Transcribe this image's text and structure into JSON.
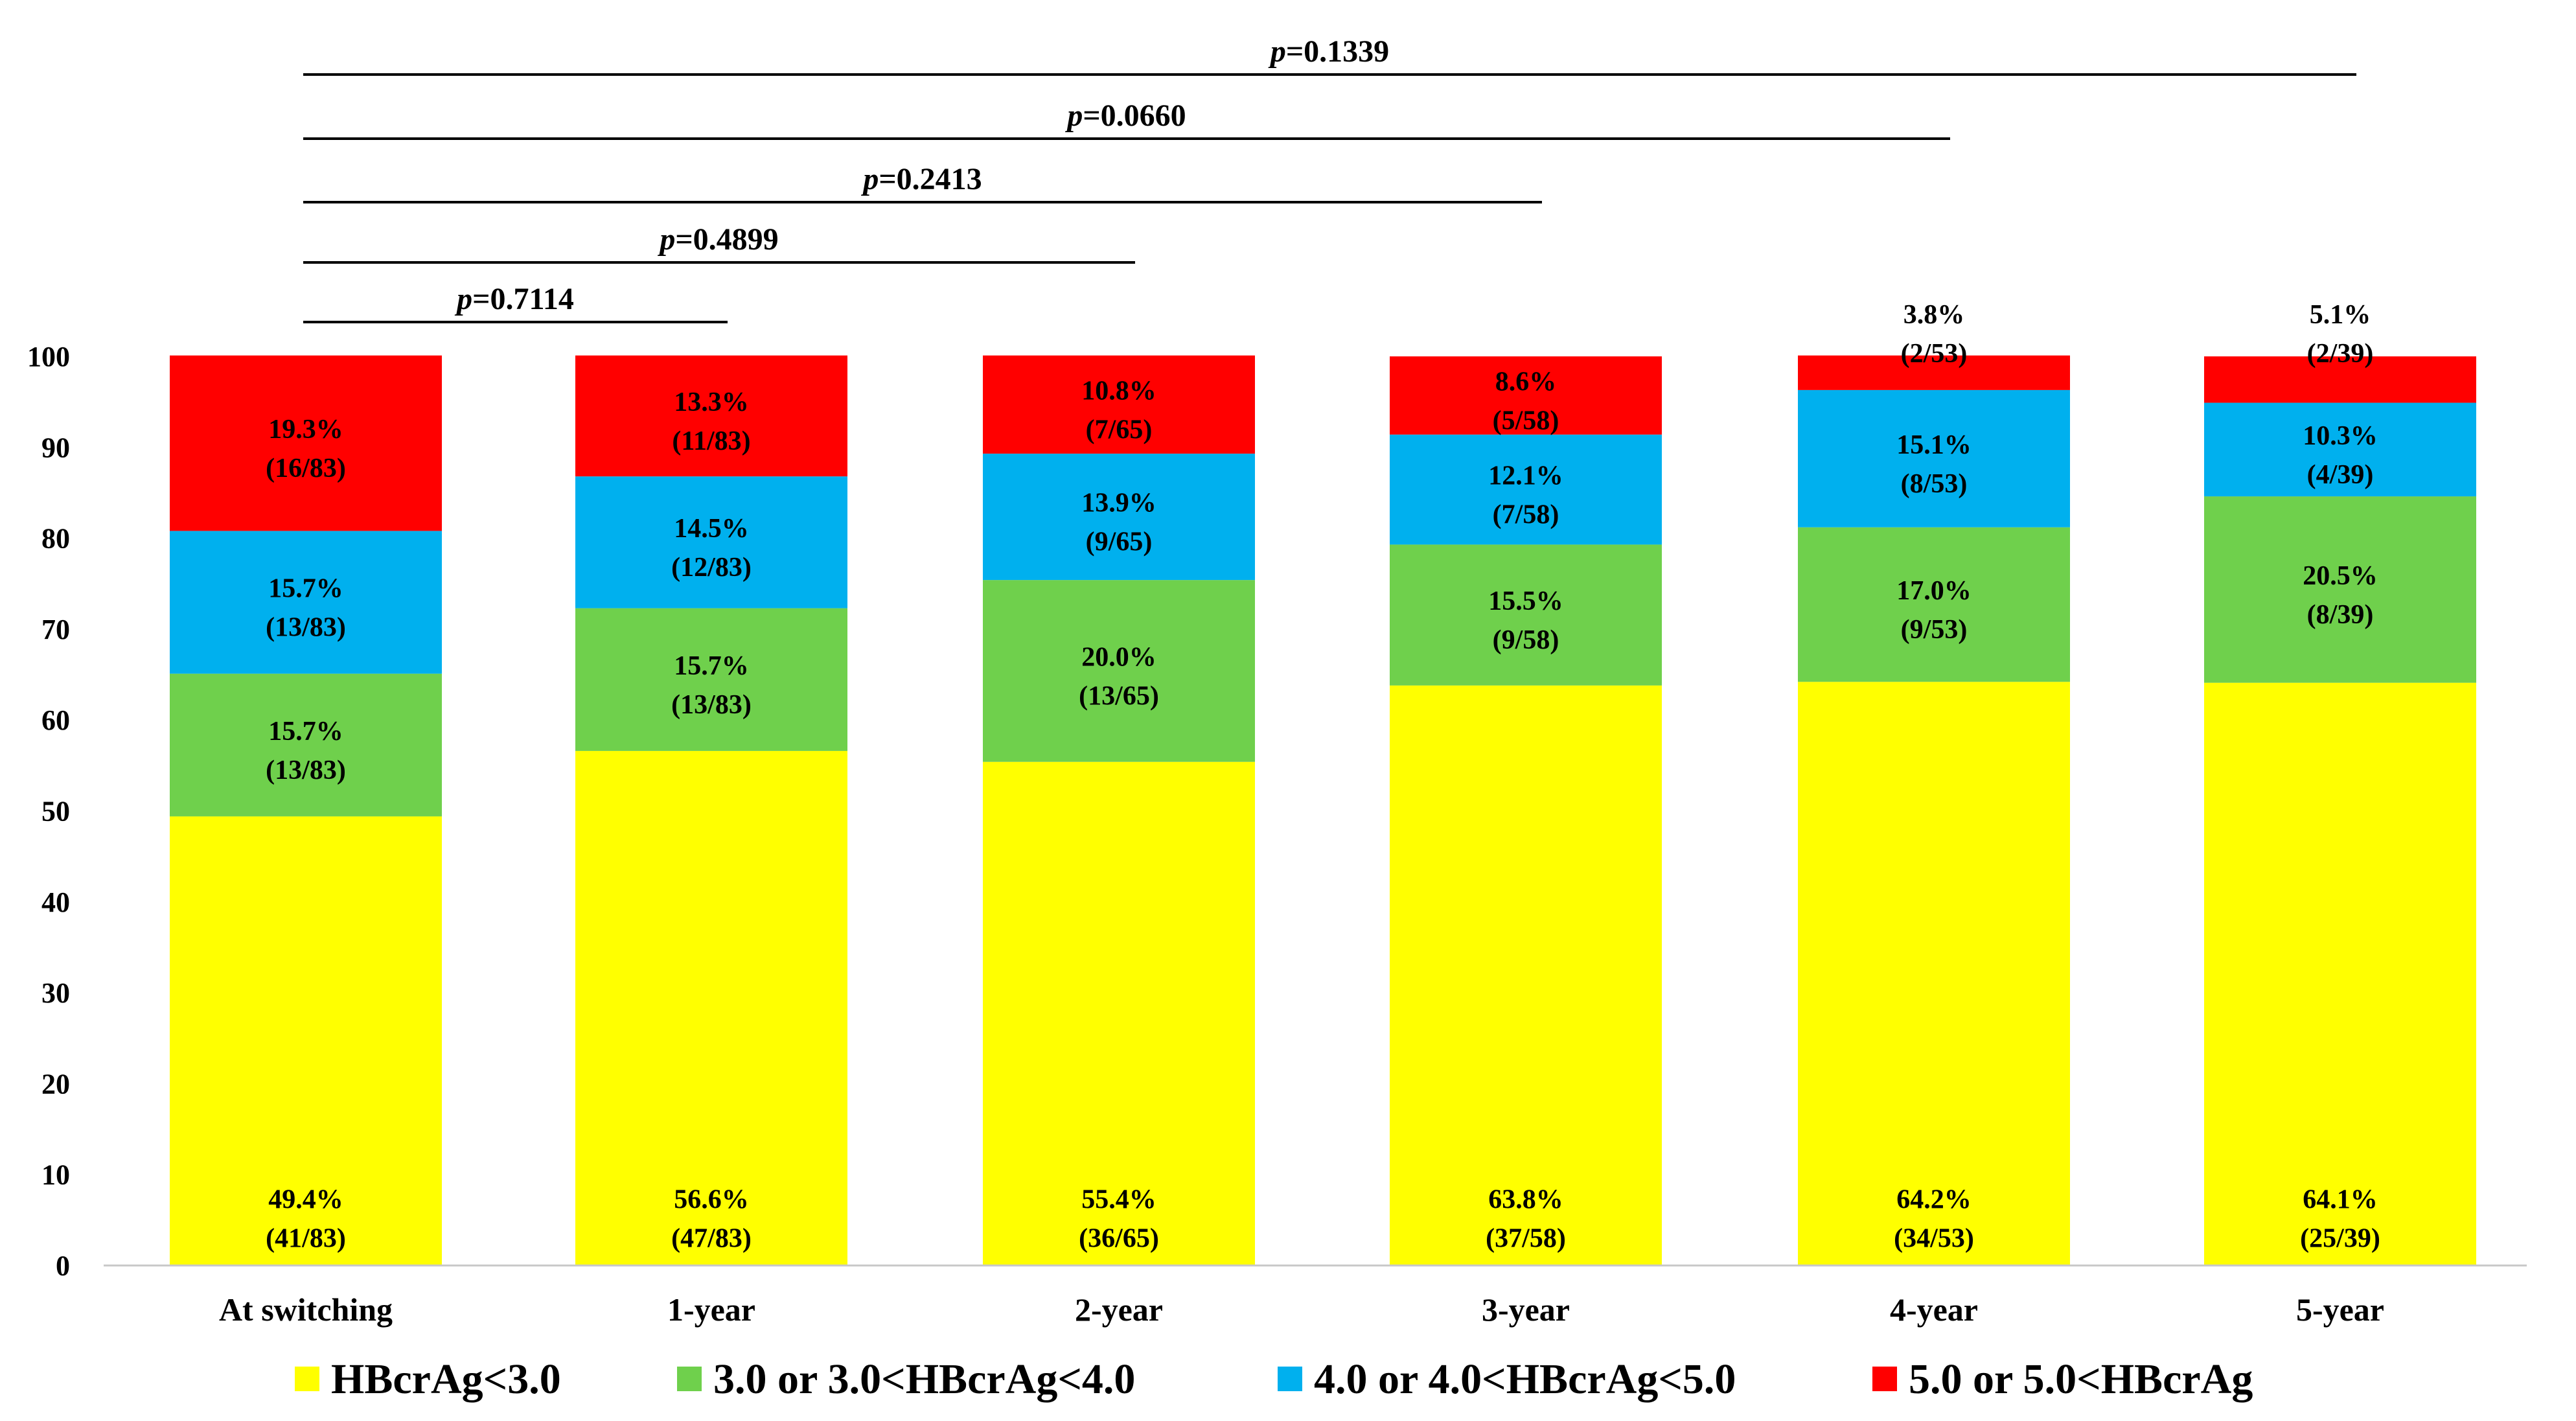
{
  "chart_data": {
    "type": "bar",
    "stacked": true,
    "title": "",
    "xlabel": "",
    "ylabel": "",
    "ylim": [
      0,
      100
    ],
    "yticks": [
      0,
      10,
      20,
      30,
      40,
      50,
      60,
      70,
      80,
      90,
      100
    ],
    "grid": false,
    "legend_position": "bottom",
    "categories": [
      "At switching",
      "1-year",
      "2-year",
      "3-year",
      "4-year",
      "5-year"
    ],
    "series": [
      {
        "name": "HBcrAg<3.0",
        "color": "#ffff00",
        "values": [
          49.4,
          56.6,
          55.4,
          63.8,
          64.2,
          64.1
        ],
        "pct_labels": [
          "49.4%",
          "56.6%",
          "55.4%",
          "63.8%",
          "64.2%",
          "64.1%"
        ],
        "count_labels": [
          "(41/83)",
          "(47/83)",
          "(36/65)",
          "(37/58)",
          "(34/53)",
          "(25/39)"
        ]
      },
      {
        "name": "3.0 or 3.0<HBcrAg<4.0",
        "color": "#6fd04c",
        "values": [
          15.7,
          15.7,
          20.0,
          15.5,
          17.0,
          20.5
        ],
        "pct_labels": [
          "15.7%",
          "15.7%",
          "20.0%",
          "15.5%",
          "17.0%",
          "20.5%"
        ],
        "count_labels": [
          "(13/83)",
          "(13/83)",
          "(13/65)",
          "(9/58)",
          "(9/53)",
          "(8/39)"
        ]
      },
      {
        "name": "4.0 or 4.0<HBcrAg<5.0",
        "color": "#00b0ee",
        "values": [
          15.7,
          14.5,
          13.9,
          12.1,
          15.1,
          10.3
        ],
        "pct_labels": [
          "15.7%",
          "14.5%",
          "13.9%",
          "12.1%",
          "15.1%",
          "10.3%"
        ],
        "count_labels": [
          "(13/83)",
          "(12/83)",
          "(9/65)",
          "(7/58)",
          "(8/53)",
          "(4/39)"
        ]
      },
      {
        "name": "5.0 or 5.0<HBcrAg",
        "color": "#ff0000",
        "values": [
          19.3,
          13.3,
          10.8,
          8.6,
          3.8,
          5.1
        ],
        "pct_labels": [
          "19.3%",
          "13.3%",
          "10.8%",
          "8.6%",
          "3.8%",
          "5.1%"
        ],
        "count_labels": [
          "(16/83)",
          "(11/83)",
          "(7/65)",
          "(5/58)",
          "(2/53)",
          "(2/39)"
        ]
      }
    ],
    "comparisons": [
      {
        "from": "At switching",
        "to": "1-year",
        "p_symbol": "p",
        "p_value": "=0.7114"
      },
      {
        "from": "At switching",
        "to": "2-year",
        "p_symbol": "p",
        "p_value": "=0.4899"
      },
      {
        "from": "At switching",
        "to": "3-year",
        "p_symbol": "p",
        "p_value": "=0.2413"
      },
      {
        "from": "At switching",
        "to": "4-year",
        "p_symbol": "p",
        "p_value": "=0.0660"
      },
      {
        "from": "At switching",
        "to": "5-year",
        "p_symbol": "p",
        "p_value": "=0.1339"
      }
    ]
  }
}
